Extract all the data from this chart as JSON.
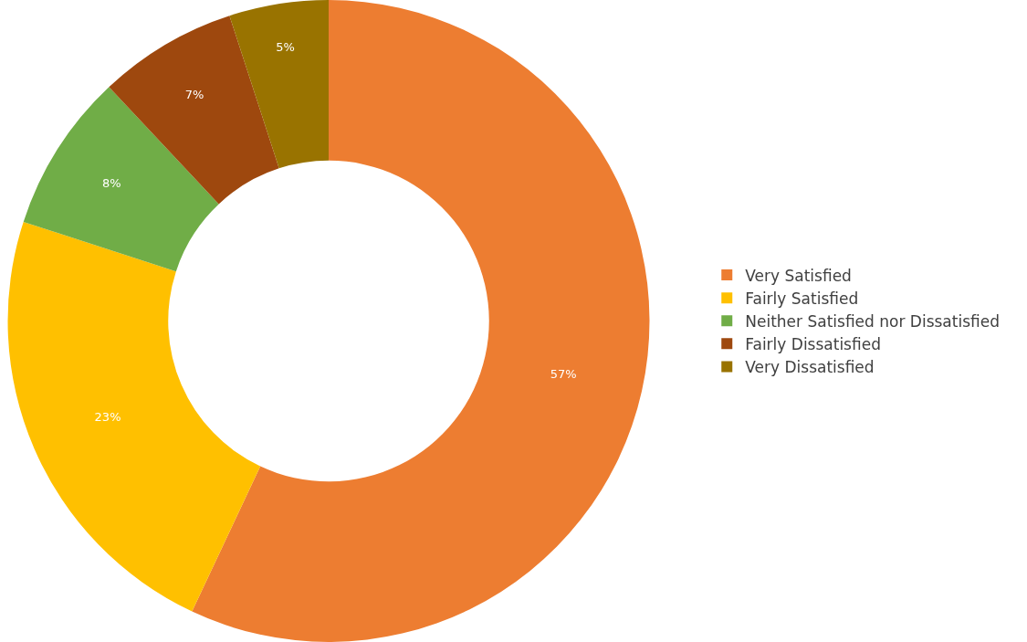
{
  "chart_data": {
    "type": "donut",
    "categories": [
      "Very Satisfied",
      "Fairly Satisfied",
      "Neither Satisfied nor Dissatisfied",
      "Fairly Dissatisfied",
      "Very Dissatisfied"
    ],
    "values": [
      57,
      23,
      8,
      7,
      5
    ],
    "colors": [
      "#ed7d31",
      "#ffc000",
      "#70ad47",
      "#9e480e",
      "#997300"
    ],
    "value_labels": [
      "57%",
      "23%",
      "8%",
      "7%",
      "5%"
    ],
    "legend": "right"
  }
}
